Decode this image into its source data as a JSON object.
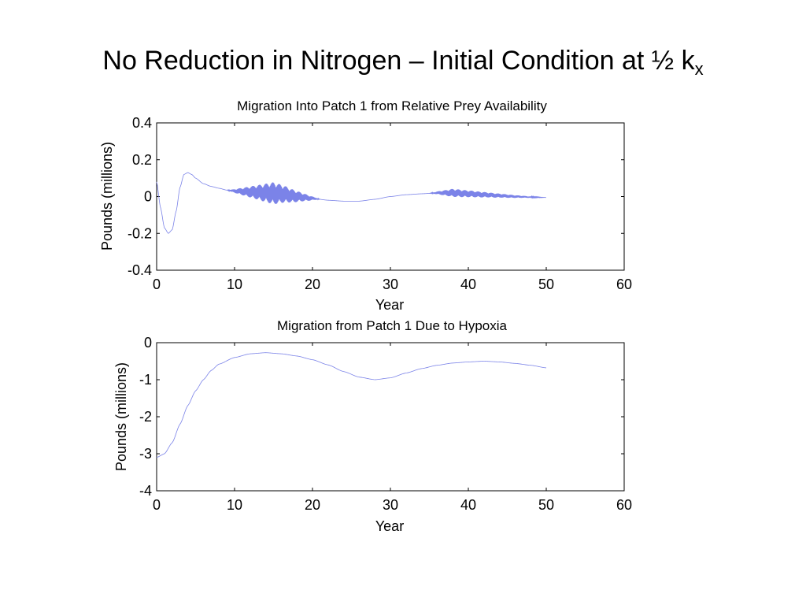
{
  "slide": {
    "title": "No Reduction in Nitrogen – Initial Condition at ½ k",
    "title_subscript": "x"
  },
  "colors": {
    "line": "#7b83e8",
    "axis": "#000000",
    "background": "#ffffff"
  },
  "chart_data": [
    {
      "type": "line",
      "title": "Migration Into Patch 1 from Relative Prey Availability",
      "xlabel": "Year",
      "ylabel": "Pounds (millions)",
      "xlim": [
        0,
        60
      ],
      "ylim": [
        -0.4,
        0.4
      ],
      "xticks": [
        0,
        10,
        20,
        30,
        40,
        50,
        60
      ],
      "xtick_labels": [
        "0",
        "10",
        "20",
        "30",
        "40",
        "50",
        "60"
      ],
      "yticks": [
        -0.4,
        -0.2,
        0,
        0.2,
        0.4
      ],
      "ytick_labels": [
        "-0.4",
        "-0.2",
        "0",
        "0.2",
        "0.4"
      ],
      "grid": false,
      "series": [
        {
          "x": [
            0,
            0.5,
            1,
            1.5,
            2,
            2.5,
            3,
            3.5,
            4,
            4.5,
            5,
            6,
            7,
            8,
            9,
            10,
            12,
            14,
            16,
            18,
            20,
            22,
            24,
            26,
            28,
            30,
            32,
            34,
            36,
            38,
            40,
            42,
            44,
            46,
            48,
            50
          ],
          "y": [
            0.08,
            -0.06,
            -0.17,
            -0.2,
            -0.18,
            -0.08,
            0.05,
            0.12,
            0.13,
            0.12,
            0.1,
            0.07,
            0.055,
            0.045,
            0.035,
            0.03,
            0.025,
            0.02,
            0.015,
            0.0,
            -0.01,
            -0.02,
            -0.025,
            -0.025,
            -0.015,
            0.0,
            0.01,
            0.015,
            0.02,
            0.02,
            0.015,
            0.01,
            0.005,
            0.0,
            -0.003,
            -0.005
          ],
          "oscillation": [
            {
              "x_start": 9,
              "x_end": 21,
              "amplitude_peak": 0.06,
              "peak_x": 15
            },
            {
              "x_start": 35,
              "x_end": 50,
              "amplitude_peak": 0.022,
              "peak_x": 38
            }
          ]
        }
      ]
    },
    {
      "type": "line",
      "title": "Migration from Patch 1 Due to Hypoxia",
      "xlabel": "Year",
      "ylabel": "Pounds (millions)",
      "xlim": [
        0,
        60
      ],
      "ylim": [
        -4,
        0
      ],
      "xticks": [
        0,
        10,
        20,
        30,
        40,
        50,
        60
      ],
      "xtick_labels": [
        "0",
        "10",
        "20",
        "30",
        "40",
        "50",
        "60"
      ],
      "yticks": [
        -4,
        -3,
        -2,
        -1,
        0
      ],
      "ytick_labels": [
        "-4",
        "-3",
        "-2",
        "-1",
        "0"
      ],
      "grid": false,
      "series": [
        {
          "x": [
            0,
            1,
            2,
            3,
            4,
            5,
            6,
            7,
            8,
            10,
            12,
            14,
            16,
            18,
            20,
            22,
            24,
            26,
            28,
            30,
            32,
            34,
            36,
            38,
            40,
            42,
            44,
            46,
            48,
            50
          ],
          "y": [
            -3.1,
            -3.0,
            -2.7,
            -2.2,
            -1.7,
            -1.3,
            -1.0,
            -0.75,
            -0.58,
            -0.4,
            -0.3,
            -0.27,
            -0.3,
            -0.36,
            -0.46,
            -0.6,
            -0.78,
            -0.93,
            -1.0,
            -0.95,
            -0.82,
            -0.7,
            -0.61,
            -0.55,
            -0.52,
            -0.5,
            -0.52,
            -0.56,
            -0.61,
            -0.68
          ]
        }
      ]
    }
  ]
}
